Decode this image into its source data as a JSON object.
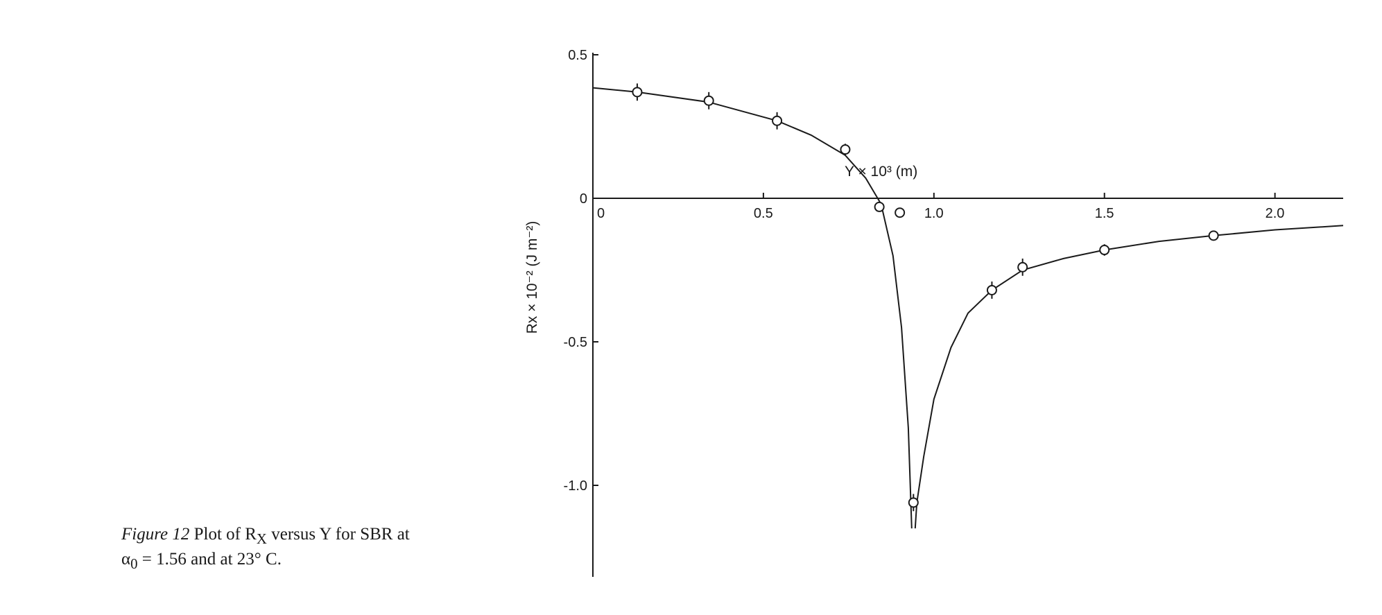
{
  "caption": {
    "figure_label": "Figure 12",
    "text": "Plot of R",
    "sub": "X",
    "text2": " versus Y for SBR at α",
    "sub2": "0",
    "text3": " = 1.56 and at 23° C."
  },
  "chart_data": {
    "type": "scatter",
    "title": "",
    "xlabel": "Y × 10³ (m)",
    "ylabel": "Rx × 10⁻² (J m⁻²)",
    "xlim": [
      0,
      2.2
    ],
    "ylim": [
      -1.15,
      0.5
    ],
    "x_ticks": [
      {
        "value": 0,
        "label": "0"
      },
      {
        "value": 0.5,
        "label": "0.5"
      },
      {
        "value": 1.0,
        "label": "1.0"
      },
      {
        "value": 1.5,
        "label": "1.5"
      },
      {
        "value": 2.0,
        "label": "2.0"
      }
    ],
    "y_ticks": [
      {
        "value": 0.5,
        "label": "0.5"
      },
      {
        "value": 0,
        "label": "0"
      },
      {
        "value": -0.5,
        "label": "-0.5"
      },
      {
        "value": -1.0,
        "label": "-1.0"
      }
    ],
    "grid": false,
    "legend": "none",
    "points": [
      {
        "x": 0.13,
        "y": 0.37,
        "err": 0.03
      },
      {
        "x": 0.34,
        "y": 0.34,
        "err": 0.03
      },
      {
        "x": 0.54,
        "y": 0.27,
        "err": 0.03
      },
      {
        "x": 0.74,
        "y": 0.17,
        "err": 0.02
      },
      {
        "x": 0.84,
        "y": -0.03,
        "err": 0
      },
      {
        "x": 0.9,
        "y": -0.05,
        "err": 0
      },
      {
        "x": 0.94,
        "y": -1.06,
        "err": 0.03
      },
      {
        "x": 1.17,
        "y": -0.32,
        "err": 0.03
      },
      {
        "x": 1.26,
        "y": -0.24,
        "err": 0.03
      },
      {
        "x": 1.5,
        "y": -0.18,
        "err": 0.02
      },
      {
        "x": 1.82,
        "y": -0.13,
        "err": 0.01
      }
    ],
    "curve": [
      [
        0,
        0.385
      ],
      [
        0.13,
        0.37
      ],
      [
        0.34,
        0.335
      ],
      [
        0.54,
        0.27
      ],
      [
        0.64,
        0.22
      ],
      [
        0.74,
        0.15
      ],
      [
        0.8,
        0.07
      ],
      [
        0.845,
        -0.02
      ],
      [
        0.88,
        -0.2
      ],
      [
        0.905,
        -0.45
      ],
      [
        0.925,
        -0.8
      ],
      [
        0.935,
        -1.15
      ]
    ],
    "curve2": [
      [
        0.945,
        -1.15
      ],
      [
        0.95,
        -1.06
      ],
      [
        0.97,
        -0.9
      ],
      [
        1.0,
        -0.7
      ],
      [
        1.05,
        -0.52
      ],
      [
        1.1,
        -0.4
      ],
      [
        1.17,
        -0.32
      ],
      [
        1.26,
        -0.25
      ],
      [
        1.38,
        -0.21
      ],
      [
        1.5,
        -0.18
      ],
      [
        1.66,
        -0.15
      ],
      [
        1.82,
        -0.13
      ],
      [
        2.0,
        -0.11
      ],
      [
        2.2,
        -0.095
      ]
    ]
  }
}
